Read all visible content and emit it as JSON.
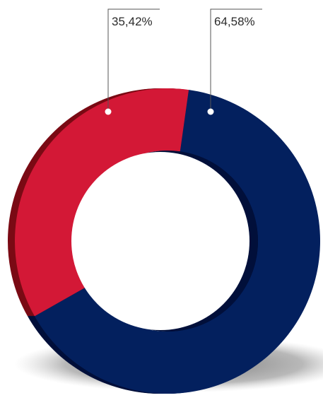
{
  "chart_data": {
    "type": "pie",
    "style": "donut",
    "slices": [
      {
        "label": "35,42%",
        "value": 35.42,
        "color": "#d31836"
      },
      {
        "label": "64,58%",
        "value": 64.58,
        "color": "#03205e"
      }
    ]
  },
  "colors": {
    "red_side": "#7a0a14",
    "blue_side": "#010f3a",
    "shadow": "#9a9a9a",
    "leader_line": "#555555"
  }
}
